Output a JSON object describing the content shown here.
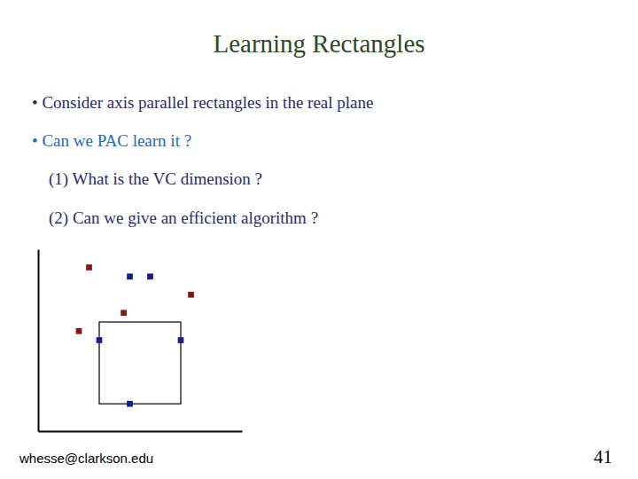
{
  "chart_data": {
    "type": "scatter",
    "title": "Learning Rectangles",
    "title_color": "#2d4a1e",
    "annotations": [
      {
        "text": "• Consider axis parallel rectangles in the real plane",
        "color": "#2b2b6b"
      },
      {
        "text": "• Can we PAC learn it ?",
        "color": "#1a6abf"
      },
      {
        "text": "    (1) What is the VC dimension ?",
        "color": "#2b2b6b"
      },
      {
        "text": "    (2) Can we give an efficient algorithm ?",
        "color": "#2b2b6b"
      },
      {
        "text": "whesse@clarkson.edu",
        "color": "#000000"
      },
      {
        "text": "41",
        "color": "#000000"
      }
    ],
    "xlim": [
      0,
      10
    ],
    "ylim": [
      0,
      10
    ],
    "xticks": [],
    "yticks": [],
    "tick_labels": false,
    "grid": false,
    "rectangle": {
      "x": 3.0,
      "y": 1.5,
      "width": 4.0,
      "height": 4.5
    },
    "series": [
      {
        "color": "#1a1a8c",
        "marker": "square",
        "x": [
          4.5,
          4.5,
          3.0,
          7.0,
          5.5
        ],
        "values": [
          8.5,
          1.5,
          5.0,
          5.0,
          8.5
        ]
      },
      {
        "color": "#7b1a1a",
        "marker": "square",
        "x": [
          2.5,
          7.5,
          2.0,
          4.2
        ],
        "values": [
          9.0,
          7.5,
          5.5,
          6.5
        ]
      }
    ]
  }
}
